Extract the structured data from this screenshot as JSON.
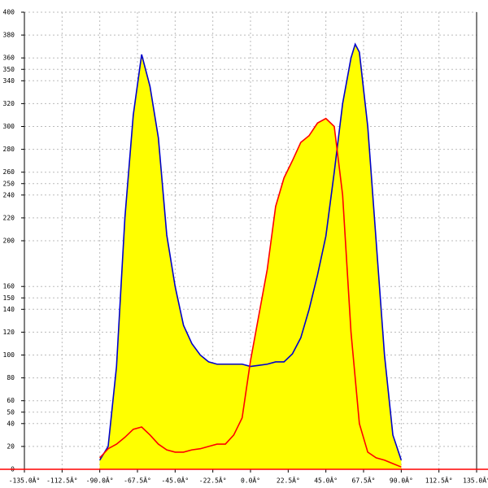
{
  "chart_data": {
    "type": "area",
    "x": [
      -90,
      -85,
      -80,
      -75,
      -70,
      -65,
      -60,
      -55,
      -50,
      -45,
      -40,
      -35,
      -30,
      -25,
      -20,
      -15,
      -10,
      -5,
      0,
      5,
      10,
      15,
      20,
      25,
      30,
      35,
      40,
      45,
      50,
      55,
      60,
      62.5,
      65,
      70,
      75,
      80,
      85,
      90
    ],
    "series": [
      {
        "color": "#0000cc",
        "values": [
          8,
          20,
          90,
          220,
          310,
          363,
          335,
          290,
          205,
          160,
          126,
          110,
          100,
          94,
          92,
          92,
          92,
          92,
          90,
          91,
          92,
          94,
          94,
          101,
          115,
          140,
          170,
          204,
          260,
          320,
          360,
          372,
          365,
          300,
          200,
          100,
          30,
          8
        ]
      },
      {
        "color": "#ff0000",
        "values": [
          10,
          18,
          22,
          28,
          35,
          37,
          30,
          22,
          17,
          15,
          15,
          17,
          18,
          20,
          22,
          22,
          30,
          45,
          95,
          135,
          175,
          230,
          255,
          270,
          286,
          292,
          303,
          307,
          300,
          240,
          120,
          80,
          40,
          15,
          10,
          8,
          5,
          2
        ]
      }
    ],
    "fill_color": "#ffff00",
    "xlim": [
      -135,
      135
    ],
    "xticks": [
      {
        "value": -135,
        "label": "-135.0Â°"
      },
      {
        "value": -112.5,
        "label": "-112.5Â°"
      },
      {
        "value": -90,
        "label": "-90.0Â°"
      },
      {
        "value": -67.5,
        "label": "-67.5Â°"
      },
      {
        "value": -45,
        "label": "-45.0Â°"
      },
      {
        "value": -22.5,
        "label": "-22.5Â°"
      },
      {
        "value": 0,
        "label": "0.0Â°"
      },
      {
        "value": 22.5,
        "label": "22.5Â°"
      },
      {
        "value": 45,
        "label": "45.0Â°"
      },
      {
        "value": 67.5,
        "label": "67.5Â°"
      },
      {
        "value": 90,
        "label": "90.0Â°"
      },
      {
        "value": 112.5,
        "label": "112.5Â°"
      },
      {
        "value": 135,
        "label": "135.0Â°"
      }
    ],
    "ylim": [
      0,
      400
    ],
    "yticks": [
      0,
      20,
      40,
      50,
      60,
      80,
      100,
      120,
      140,
      150,
      160,
      200,
      220,
      240,
      250,
      260,
      280,
      300,
      320,
      340,
      350,
      360,
      380,
      400
    ],
    "grid": true
  }
}
